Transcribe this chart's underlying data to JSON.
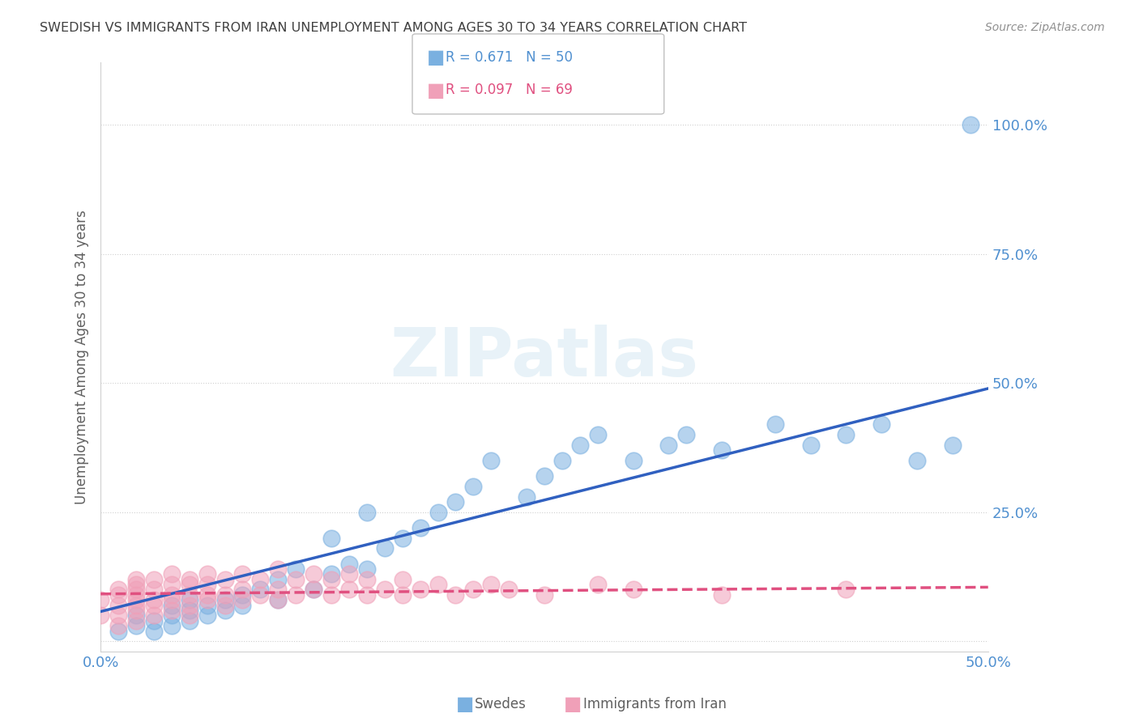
{
  "title": "SWEDISH VS IMMIGRANTS FROM IRAN UNEMPLOYMENT AMONG AGES 30 TO 34 YEARS CORRELATION CHART",
  "source": "Source: ZipAtlas.com",
  "ylabel": "Unemployment Among Ages 30 to 34 years",
  "xmin": 0.0,
  "xmax": 0.5,
  "ymin": -0.02,
  "ymax": 1.12,
  "swedes_R": 0.671,
  "swedes_N": 50,
  "iran_R": 0.097,
  "iran_N": 69,
  "swedes_color": "#7ab0e0",
  "iran_color": "#f0a0b8",
  "swedes_line_color": "#3060c0",
  "iran_line_color": "#e05080",
  "background_color": "#ffffff",
  "grid_color": "#d0d0d0",
  "title_color": "#404040",
  "axis_label_color": "#5090d0",
  "legend_label_swedes": "Swedes",
  "legend_label_iran": "Immigrants from Iran",
  "swedes_x": [
    0.01,
    0.02,
    0.02,
    0.03,
    0.03,
    0.04,
    0.04,
    0.04,
    0.05,
    0.05,
    0.05,
    0.06,
    0.06,
    0.07,
    0.07,
    0.08,
    0.08,
    0.09,
    0.1,
    0.1,
    0.11,
    0.12,
    0.13,
    0.13,
    0.14,
    0.15,
    0.15,
    0.16,
    0.17,
    0.18,
    0.19,
    0.2,
    0.21,
    0.22,
    0.24,
    0.25,
    0.26,
    0.27,
    0.28,
    0.3,
    0.32,
    0.33,
    0.35,
    0.38,
    0.4,
    0.42,
    0.44,
    0.46,
    0.48,
    0.49
  ],
  "swedes_y": [
    0.02,
    0.03,
    0.05,
    0.02,
    0.04,
    0.03,
    0.05,
    0.07,
    0.04,
    0.06,
    0.08,
    0.05,
    0.07,
    0.06,
    0.08,
    0.07,
    0.09,
    0.1,
    0.08,
    0.12,
    0.14,
    0.1,
    0.13,
    0.2,
    0.15,
    0.14,
    0.25,
    0.18,
    0.2,
    0.22,
    0.25,
    0.27,
    0.3,
    0.35,
    0.28,
    0.32,
    0.35,
    0.38,
    0.4,
    0.35,
    0.38,
    0.4,
    0.37,
    0.42,
    0.38,
    0.4,
    0.42,
    0.35,
    0.38,
    1.0
  ],
  "iran_x": [
    0.0,
    0.0,
    0.01,
    0.01,
    0.01,
    0.01,
    0.01,
    0.02,
    0.02,
    0.02,
    0.02,
    0.02,
    0.02,
    0.02,
    0.02,
    0.03,
    0.03,
    0.03,
    0.03,
    0.03,
    0.04,
    0.04,
    0.04,
    0.04,
    0.04,
    0.05,
    0.05,
    0.05,
    0.05,
    0.05,
    0.06,
    0.06,
    0.06,
    0.06,
    0.07,
    0.07,
    0.07,
    0.08,
    0.08,
    0.08,
    0.09,
    0.09,
    0.1,
    0.1,
    0.1,
    0.11,
    0.11,
    0.12,
    0.12,
    0.13,
    0.13,
    0.14,
    0.14,
    0.15,
    0.15,
    0.16,
    0.17,
    0.17,
    0.18,
    0.19,
    0.2,
    0.21,
    0.22,
    0.23,
    0.25,
    0.28,
    0.3,
    0.35,
    0.42
  ],
  "iran_y": [
    0.05,
    0.08,
    0.03,
    0.05,
    0.07,
    0.09,
    0.1,
    0.04,
    0.06,
    0.07,
    0.08,
    0.09,
    0.1,
    0.11,
    0.12,
    0.05,
    0.07,
    0.08,
    0.1,
    0.12,
    0.06,
    0.08,
    0.09,
    0.11,
    0.13,
    0.05,
    0.07,
    0.09,
    0.11,
    0.12,
    0.08,
    0.09,
    0.11,
    0.13,
    0.07,
    0.09,
    0.12,
    0.08,
    0.1,
    0.13,
    0.09,
    0.12,
    0.08,
    0.1,
    0.14,
    0.09,
    0.12,
    0.1,
    0.13,
    0.09,
    0.12,
    0.1,
    0.13,
    0.09,
    0.12,
    0.1,
    0.09,
    0.12,
    0.1,
    0.11,
    0.09,
    0.1,
    0.11,
    0.1,
    0.09,
    0.11,
    0.1,
    0.09,
    0.1
  ]
}
